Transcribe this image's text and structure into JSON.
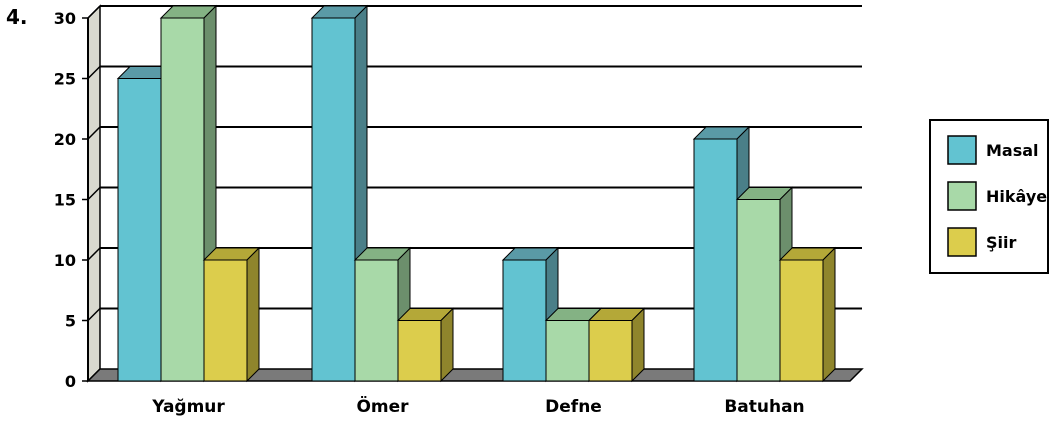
{
  "question_number": "4.",
  "colors": {
    "Masal": {
      "front": "#62c3d1",
      "top": "#5a9aa6",
      "side": "#4a7f88"
    },
    "Hikâye": {
      "front": "#a8d9a8",
      "top": "#84b284",
      "side": "#6c8f6c"
    },
    "Şiir": {
      "front": "#dccd4c",
      "top": "#b4a838",
      "side": "#8f852c"
    }
  },
  "chart_data": {
    "type": "bar",
    "title": "",
    "xlabel": "",
    "ylabel": "",
    "categories": [
      "Yağmur",
      "Ömer",
      "Defne",
      "Batuhan"
    ],
    "series": [
      {
        "name": "Masal",
        "values": [
          25,
          30,
          10,
          20
        ]
      },
      {
        "name": "Hikâye",
        "values": [
          30,
          10,
          5,
          15
        ]
      },
      {
        "name": "Şiir",
        "values": [
          10,
          5,
          5,
          10
        ]
      }
    ],
    "ylim": [
      0,
      30
    ],
    "yticks": [
      0,
      5,
      10,
      15,
      20,
      25,
      30
    ],
    "grid": true,
    "three_d": true,
    "legend_position": "right"
  }
}
